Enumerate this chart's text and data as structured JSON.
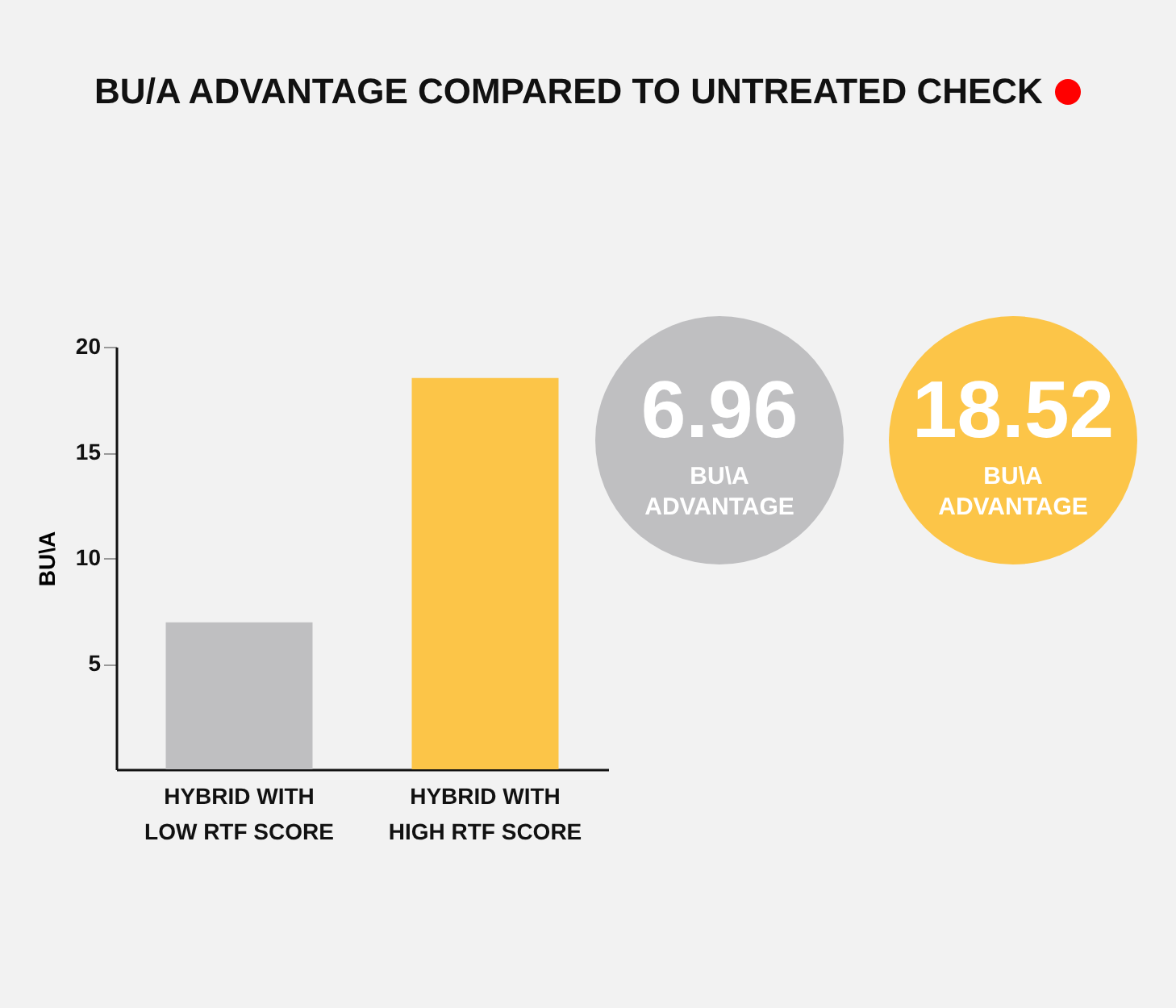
{
  "chart_data": {
    "type": "bar",
    "title": "BU/A ADVANTAGE COMPARED TO UNTREATED CHECK",
    "ylabel": "BU\\A",
    "categories": [
      "HYBRID WITH LOW RTF SCORE",
      "HYBRID WITH HIGH RTF SCORE"
    ],
    "values": [
      6.96,
      18.52
    ],
    "colors": [
      "#bfbfc1",
      "#fcc548"
    ],
    "ylim": [
      0,
      20
    ],
    "yticks": [
      5,
      10,
      15,
      20
    ],
    "grid": false,
    "annotations": [
      "6.96",
      "BU\\A ADVANTAGE",
      "18.52",
      "BU\\A ADVANTAGE"
    ]
  }
}
